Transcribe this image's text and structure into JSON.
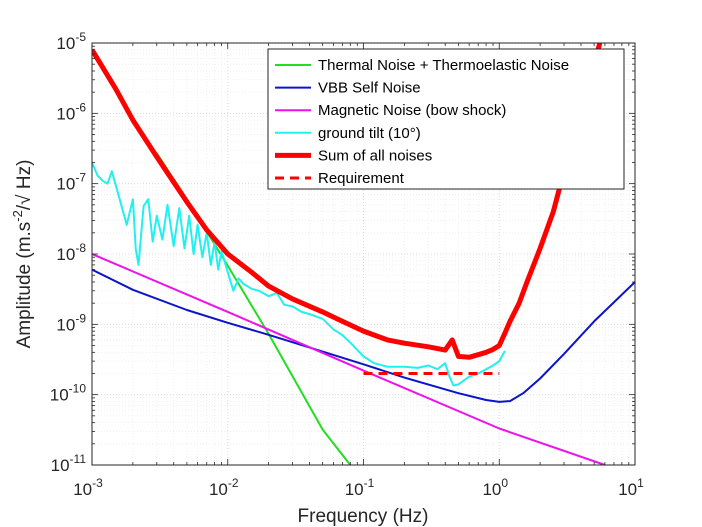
{
  "chart_data": {
    "type": "line",
    "xlabel": "Frequency (Hz)",
    "ylabel": {
      "pre": "Amplitude (m.s",
      "sup": "-2",
      "post": "/√ Hz)"
    },
    "x_scale": "log",
    "y_scale": "log",
    "xlim": [
      0.001,
      10
    ],
    "ylim": [
      1e-11,
      1e-05
    ],
    "grid": true,
    "minor_grid": true,
    "legend_position": "top-right",
    "x_ticks": [
      {
        "value": 0.001,
        "base": "10",
        "exp": "-3"
      },
      {
        "value": 0.01,
        "base": "10",
        "exp": "-2"
      },
      {
        "value": 0.1,
        "base": "10",
        "exp": "-1"
      },
      {
        "value": 1,
        "base": "10",
        "exp": "0"
      },
      {
        "value": 10,
        "base": "10",
        "exp": "1"
      }
    ],
    "y_ticks": [
      {
        "value": 1e-11,
        "base": "10",
        "exp": "-11"
      },
      {
        "value": 1e-10,
        "base": "10",
        "exp": "-10"
      },
      {
        "value": 1e-09,
        "base": "10",
        "exp": "-9"
      },
      {
        "value": 1e-08,
        "base": "10",
        "exp": "-8"
      },
      {
        "value": 1e-07,
        "base": "10",
        "exp": "-7"
      },
      {
        "value": 1e-06,
        "base": "10",
        "exp": "-6"
      },
      {
        "value": 1e-05,
        "base": "10",
        "exp": "-5"
      }
    ],
    "series": [
      {
        "name": "Thermal Noise + Thermoelastic Noise",
        "color": "#22dd22",
        "style": "solid",
        "x": [
          0.003,
          0.005,
          0.01,
          0.02,
          0.05,
          0.08
        ],
        "y": [
          2.7e-07,
          6e-08,
          6.8e-09,
          7.3e-10,
          3.2e-11,
          1e-11
        ]
      },
      {
        "name": "VBB Self Noise",
        "color": "#0a14c8",
        "style": "solid",
        "x": [
          0.001,
          0.002,
          0.005,
          0.01,
          0.02,
          0.05,
          0.1,
          0.2,
          0.5,
          0.8,
          1.0,
          1.2,
          1.5,
          2,
          3,
          5,
          10
        ],
        "y": [
          6e-09,
          3.1e-09,
          1.6e-09,
          1.05e-09,
          7.1e-10,
          4.1e-10,
          2.7e-10,
          1.75e-10,
          1.05e-10,
          8.4e-11,
          7.9e-11,
          8.1e-11,
          1.05e-10,
          1.7e-10,
          3.8e-10,
          1.1e-09,
          4e-09
        ]
      },
      {
        "name": "Magnetic Noise (bow shock)",
        "color": "#ee11ee",
        "style": "solid",
        "x": [
          0.001,
          0.01,
          0.1,
          1,
          6
        ],
        "y": [
          1e-08,
          1.5e-09,
          2.2e-10,
          3.3e-11,
          1e-11
        ]
      },
      {
        "name": "ground tilt (10°)",
        "color": "#22f0f0",
        "style": "solid",
        "x": [
          0.001,
          0.0011,
          0.0012,
          0.0013,
          0.0014,
          0.0016,
          0.0018,
          0.002,
          0.0021,
          0.0022,
          0.0024,
          0.0026,
          0.0028,
          0.003,
          0.0033,
          0.0036,
          0.004,
          0.0044,
          0.0048,
          0.0052,
          0.0056,
          0.006,
          0.0065,
          0.007,
          0.0075,
          0.008,
          0.0085,
          0.009,
          0.01,
          0.011,
          0.012,
          0.013,
          0.015,
          0.017,
          0.02,
          0.023,
          0.026,
          0.03,
          0.035,
          0.04,
          0.05,
          0.06,
          0.07,
          0.08,
          0.1,
          0.12,
          0.15,
          0.2,
          0.25,
          0.3,
          0.35,
          0.4,
          0.43,
          0.46,
          0.5,
          0.55,
          0.6,
          0.7,
          0.8,
          0.9,
          1.0,
          1.1
        ],
        "y": [
          2e-07,
          1.3e-07,
          1.1e-07,
          1e-07,
          1.5e-07,
          6e-08,
          2.6e-08,
          6e-08,
          1.2e-08,
          7e-09,
          4.8e-08,
          6e-08,
          1.5e-08,
          3.5e-08,
          1.6e-08,
          5e-08,
          1.3e-08,
          4.5e-08,
          1.2e-08,
          3.5e-08,
          1e-08,
          2.6e-08,
          9e-09,
          2e-08,
          7e-09,
          1.5e-08,
          6e-09,
          1.1e-08,
          5.5e-09,
          3e-09,
          4.5e-09,
          3.8e-09,
          3.2e-09,
          3e-09,
          2.5e-09,
          2.8e-09,
          1.9e-09,
          1.8e-09,
          1.5e-09,
          1.4e-09,
          1.2e-09,
          8.5e-10,
          7e-10,
          5.5e-10,
          3.5e-10,
          2.8e-10,
          2.5e-10,
          2.5e-10,
          2.4e-10,
          2.6e-10,
          2.3e-10,
          2.8e-10,
          1.8e-10,
          1.35e-10,
          1.4e-10,
          1.6e-10,
          1.8e-10,
          2e-10,
          2.3e-10,
          2.6e-10,
          3e-10,
          4.2e-10
        ]
      },
      {
        "name": "Sum of all noises",
        "color": "#ff0000",
        "style": "solid-thick",
        "x": [
          0.001,
          0.0015,
          0.002,
          0.003,
          0.004,
          0.005,
          0.007,
          0.01,
          0.015,
          0.02,
          0.03,
          0.05,
          0.07,
          0.1,
          0.15,
          0.2,
          0.3,
          0.4,
          0.45,
          0.5,
          0.6,
          0.7,
          0.8,
          0.9,
          1.0,
          1.1,
          1.2,
          1.4,
          1.6,
          2.0,
          2.5,
          3.0,
          3.5,
          4.0,
          5.0,
          5.5
        ],
        "y": [
          8e-06,
          2.2e-06,
          8e-07,
          2.4e-07,
          1.05e-07,
          5.5e-08,
          2.2e-08,
          1e-08,
          5.5e-09,
          3.5e-09,
          2.3e-09,
          1.5e-09,
          1.1e-09,
          8e-10,
          6e-10,
          5.4e-10,
          4.8e-10,
          4.3e-10,
          6e-10,
          3.5e-10,
          3.4e-10,
          3.7e-10,
          4e-10,
          4.4e-10,
          5e-10,
          7.5e-10,
          1.1e-09,
          2e-09,
          4e-09,
          1.2e-08,
          4e-08,
          1.5e-07,
          5e-07,
          1.5e-06,
          5e-06,
          1e-05
        ]
      },
      {
        "name": "Requirement",
        "color": "#ff0000",
        "style": "dashed",
        "x": [
          0.1,
          1.0
        ],
        "y": [
          2e-10,
          2e-10
        ]
      }
    ]
  }
}
